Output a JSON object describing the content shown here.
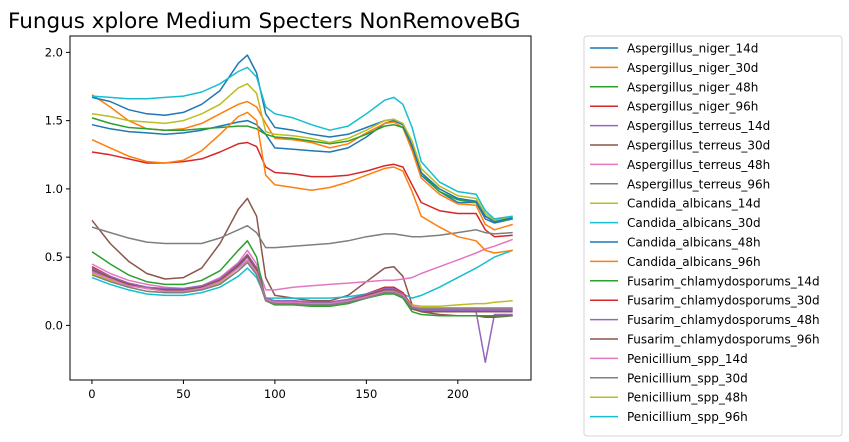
{
  "chart_data": {
    "type": "line",
    "title": "Fungus xplore Medium Specters NonRemoveBG",
    "xlabel": "",
    "ylabel": "",
    "xlim": [
      -12,
      240
    ],
    "ylim": [
      -0.4,
      2.12
    ],
    "xticks": [
      0,
      50,
      100,
      150,
      200
    ],
    "yticks": [
      0.0,
      0.5,
      1.0,
      1.5,
      2.0
    ],
    "ytick_labels": [
      "0.0",
      "0.5",
      "1.0",
      "1.5",
      "2.0"
    ],
    "grid": false,
    "legend_position": "right, outside plot",
    "x": [
      0,
      10,
      20,
      30,
      40,
      50,
      60,
      70,
      80,
      85,
      90,
      95,
      100,
      110,
      120,
      130,
      140,
      150,
      160,
      165,
      170,
      175,
      180,
      190,
      200,
      210,
      215,
      220,
      230
    ],
    "series": [
      {
        "name": "Aspergillus_niger_14d",
        "color": "#1f77b4",
        "values": [
          1.47,
          1.44,
          1.42,
          1.41,
          1.4,
          1.41,
          1.43,
          1.46,
          1.49,
          1.5,
          1.47,
          1.4,
          1.3,
          1.29,
          1.28,
          1.27,
          1.3,
          1.38,
          1.48,
          1.5,
          1.47,
          1.3,
          1.1,
          0.98,
          0.9,
          0.9,
          0.78,
          0.75,
          0.78
        ]
      },
      {
        "name": "Aspergillus_niger_30d",
        "color": "#ff7f0e",
        "values": [
          1.69,
          1.6,
          1.5,
          1.44,
          1.43,
          1.44,
          1.48,
          1.55,
          1.62,
          1.64,
          1.6,
          1.48,
          1.37,
          1.36,
          1.34,
          1.3,
          1.33,
          1.41,
          1.48,
          1.49,
          1.45,
          1.28,
          1.08,
          0.96,
          0.89,
          0.88,
          0.74,
          0.7,
          0.74
        ]
      },
      {
        "name": "Aspergillus_niger_48h",
        "color": "#2ca02c",
        "values": [
          1.52,
          1.48,
          1.45,
          1.44,
          1.43,
          1.43,
          1.44,
          1.45,
          1.46,
          1.46,
          1.44,
          1.4,
          1.38,
          1.37,
          1.35,
          1.33,
          1.35,
          1.4,
          1.46,
          1.47,
          1.45,
          1.32,
          1.12,
          0.98,
          0.92,
          0.9,
          0.8,
          0.76,
          0.78
        ]
      },
      {
        "name": "Aspergillus_niger_96h",
        "color": "#d62728",
        "values": [
          1.27,
          1.25,
          1.22,
          1.19,
          1.19,
          1.2,
          1.22,
          1.27,
          1.33,
          1.34,
          1.31,
          1.16,
          1.12,
          1.11,
          1.09,
          1.09,
          1.1,
          1.13,
          1.17,
          1.18,
          1.16,
          1.03,
          0.9,
          0.84,
          0.82,
          0.82,
          0.7,
          0.65,
          0.66
        ]
      },
      {
        "name": "Aspergillus_terreus_14d",
        "color": "#9467bd",
        "values": [
          0.4,
          0.34,
          0.3,
          0.27,
          0.26,
          0.26,
          0.28,
          0.33,
          0.43,
          0.5,
          0.4,
          0.2,
          0.17,
          0.17,
          0.16,
          0.16,
          0.18,
          0.22,
          0.25,
          0.26,
          0.22,
          0.14,
          0.11,
          0.11,
          0.1,
          0.1,
          -0.27,
          0.08,
          0.08
        ]
      },
      {
        "name": "Aspergillus_terreus_30d",
        "color": "#8c564b",
        "values": [
          0.77,
          0.6,
          0.47,
          0.38,
          0.34,
          0.35,
          0.42,
          0.6,
          0.85,
          0.93,
          0.8,
          0.35,
          0.22,
          0.2,
          0.18,
          0.18,
          0.22,
          0.32,
          0.42,
          0.43,
          0.36,
          0.15,
          0.1,
          0.08,
          0.07,
          0.07,
          0.06,
          0.06,
          0.07
        ]
      },
      {
        "name": "Aspergillus_terreus_48h",
        "color": "#e377c2",
        "values": [
          0.45,
          0.38,
          0.33,
          0.3,
          0.28,
          0.27,
          0.29,
          0.35,
          0.46,
          0.55,
          0.45,
          0.26,
          0.26,
          0.28,
          0.29,
          0.3,
          0.31,
          0.32,
          0.33,
          0.33,
          0.34,
          0.35,
          0.38,
          0.43,
          0.48,
          0.53,
          0.56,
          0.58,
          0.63
        ]
      },
      {
        "name": "Aspergillus_terreus_96h",
        "color": "#7f7f7f",
        "values": [
          0.72,
          0.68,
          0.64,
          0.61,
          0.6,
          0.6,
          0.6,
          0.64,
          0.7,
          0.73,
          0.68,
          0.57,
          0.57,
          0.58,
          0.59,
          0.6,
          0.62,
          0.65,
          0.67,
          0.67,
          0.66,
          0.65,
          0.65,
          0.66,
          0.68,
          0.7,
          0.68,
          0.67,
          0.68
        ]
      },
      {
        "name": "Candida_albicans_14d",
        "color": "#bcbd22",
        "values": [
          0.38,
          0.33,
          0.28,
          0.25,
          0.24,
          0.24,
          0.26,
          0.31,
          0.4,
          0.47,
          0.38,
          0.18,
          0.16,
          0.16,
          0.15,
          0.15,
          0.17,
          0.2,
          0.24,
          0.24,
          0.21,
          0.15,
          0.14,
          0.14,
          0.15,
          0.16,
          0.16,
          0.17,
          0.18
        ]
      },
      {
        "name": "Candida_albicans_30d",
        "color": "#17becf",
        "values": [
          0.35,
          0.3,
          0.26,
          0.23,
          0.22,
          0.22,
          0.24,
          0.28,
          0.36,
          0.42,
          0.35,
          0.2,
          0.2,
          0.2,
          0.2,
          0.2,
          0.21,
          0.23,
          0.26,
          0.26,
          0.23,
          0.2,
          0.22,
          0.28,
          0.35,
          0.42,
          0.46,
          0.5,
          0.55
        ]
      },
      {
        "name": "Candida_albicans_48h",
        "color": "#1f77b4",
        "values": [
          1.67,
          1.64,
          1.58,
          1.55,
          1.54,
          1.56,
          1.62,
          1.72,
          1.92,
          1.98,
          1.85,
          1.55,
          1.45,
          1.43,
          1.4,
          1.38,
          1.4,
          1.45,
          1.5,
          1.51,
          1.47,
          1.32,
          1.12,
          1.0,
          0.93,
          0.91,
          0.8,
          0.76,
          0.79
        ]
      },
      {
        "name": "Candida_albicans_96h",
        "color": "#ff7f0e",
        "values": [
          1.36,
          1.3,
          1.24,
          1.2,
          1.19,
          1.21,
          1.28,
          1.4,
          1.53,
          1.56,
          1.5,
          1.1,
          1.03,
          1.01,
          0.99,
          1.01,
          1.05,
          1.1,
          1.15,
          1.16,
          1.13,
          0.98,
          0.8,
          0.72,
          0.65,
          0.62,
          0.55,
          0.53,
          0.55
        ]
      },
      {
        "name": "Fusarim_chlamydosporums_14d",
        "color": "#2ca02c",
        "values": [
          0.54,
          0.45,
          0.37,
          0.32,
          0.3,
          0.3,
          0.33,
          0.4,
          0.55,
          0.62,
          0.5,
          0.18,
          0.15,
          0.15,
          0.14,
          0.14,
          0.16,
          0.2,
          0.23,
          0.23,
          0.2,
          0.1,
          0.08,
          0.07,
          0.07,
          0.07,
          0.07,
          0.07,
          0.07
        ]
      },
      {
        "name": "Fusarim_chlamydosporums_30d",
        "color": "#d62728",
        "values": [
          0.43,
          0.36,
          0.31,
          0.28,
          0.26,
          0.26,
          0.28,
          0.33,
          0.44,
          0.52,
          0.42,
          0.2,
          0.18,
          0.18,
          0.17,
          0.17,
          0.19,
          0.23,
          0.28,
          0.28,
          0.24,
          0.14,
          0.12,
          0.12,
          0.12,
          0.12,
          0.12,
          0.12,
          0.12
        ]
      },
      {
        "name": "Fusarim_chlamydosporums_48h",
        "color": "#9467bd",
        "values": [
          0.42,
          0.36,
          0.31,
          0.28,
          0.27,
          0.27,
          0.29,
          0.34,
          0.45,
          0.52,
          0.42,
          0.2,
          0.18,
          0.18,
          0.17,
          0.17,
          0.19,
          0.23,
          0.27,
          0.27,
          0.23,
          0.13,
          0.11,
          0.11,
          0.11,
          0.11,
          0.11,
          0.11,
          0.11
        ]
      },
      {
        "name": "Fusarim_chlamydosporums_96h",
        "color": "#8c564b",
        "values": [
          0.41,
          0.35,
          0.3,
          0.27,
          0.26,
          0.26,
          0.28,
          0.33,
          0.44,
          0.51,
          0.41,
          0.19,
          0.17,
          0.17,
          0.16,
          0.16,
          0.18,
          0.22,
          0.26,
          0.26,
          0.22,
          0.12,
          0.1,
          0.1,
          0.1,
          0.1,
          0.1,
          0.1,
          0.1
        ]
      },
      {
        "name": "Penicillium_spp_14d",
        "color": "#e377c2",
        "values": [
          0.39,
          0.34,
          0.29,
          0.27,
          0.25,
          0.25,
          0.27,
          0.32,
          0.42,
          0.48,
          0.39,
          0.19,
          0.17,
          0.17,
          0.16,
          0.16,
          0.18,
          0.21,
          0.25,
          0.25,
          0.22,
          0.14,
          0.13,
          0.13,
          0.13,
          0.13,
          0.13,
          0.13,
          0.13
        ]
      },
      {
        "name": "Penicillium_spp_30d",
        "color": "#7f7f7f",
        "values": [
          0.37,
          0.32,
          0.28,
          0.25,
          0.24,
          0.24,
          0.26,
          0.3,
          0.4,
          0.46,
          0.37,
          0.18,
          0.16,
          0.16,
          0.15,
          0.15,
          0.17,
          0.2,
          0.24,
          0.24,
          0.21,
          0.13,
          0.12,
          0.12,
          0.12,
          0.12,
          0.12,
          0.12,
          0.12
        ]
      },
      {
        "name": "Penicillium_spp_48h",
        "color": "#bcbd22",
        "values": [
          1.55,
          1.53,
          1.5,
          1.49,
          1.48,
          1.5,
          1.55,
          1.62,
          1.74,
          1.77,
          1.7,
          1.42,
          1.4,
          1.39,
          1.37,
          1.34,
          1.37,
          1.43,
          1.5,
          1.51,
          1.48,
          1.35,
          1.15,
          1.02,
          0.95,
          0.93,
          0.82,
          0.77,
          0.8
        ]
      },
      {
        "name": "Penicillium_spp_96h",
        "color": "#17becf",
        "values": [
          1.68,
          1.67,
          1.66,
          1.66,
          1.67,
          1.68,
          1.71,
          1.77,
          1.86,
          1.89,
          1.82,
          1.6,
          1.55,
          1.52,
          1.47,
          1.43,
          1.46,
          1.55,
          1.65,
          1.67,
          1.62,
          1.45,
          1.2,
          1.05,
          0.98,
          0.96,
          0.84,
          0.78,
          0.8
        ]
      }
    ]
  }
}
